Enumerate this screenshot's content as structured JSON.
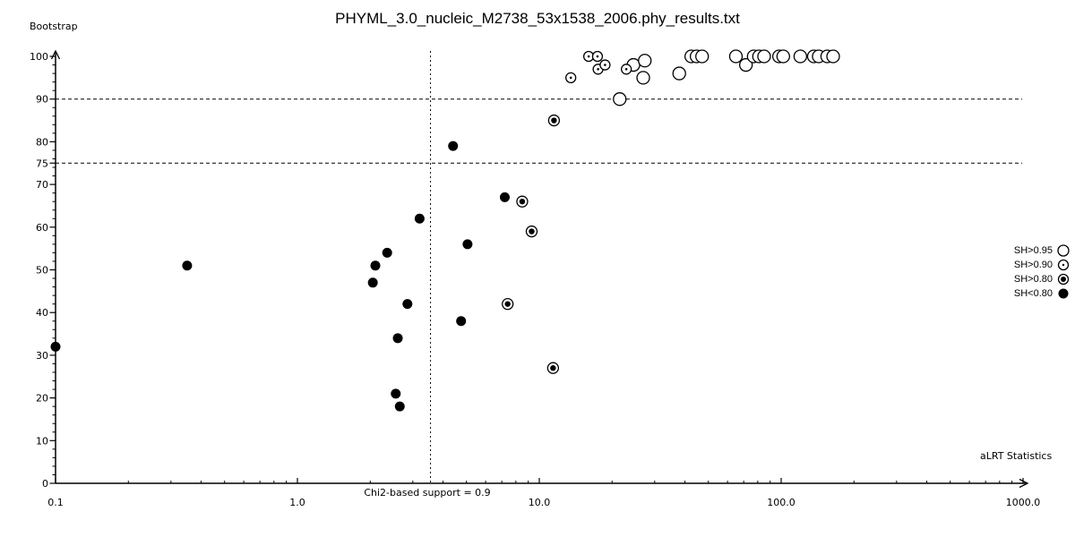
{
  "colors": {
    "background": "#ffffff",
    "foreground": "#000000"
  },
  "chart_data": {
    "type": "scatter",
    "title": "PHYML_3.0_nucleic_M2738_53x1538_2006.phy_results.txt",
    "xlabel": "aLRT Statistics",
    "ylabel": "Bootstrap",
    "x_axis": {
      "scale": "log",
      "min": 0.1,
      "max": 1000,
      "ticks": [
        0.1,
        1,
        10,
        100,
        1000
      ],
      "tick_labels": [
        "0.1",
        "1.0",
        "10.0",
        "100.0",
        "1000.0"
      ]
    },
    "y_axis": {
      "scale": "linear",
      "min": 0,
      "max": 100,
      "ticks": [
        0,
        10,
        20,
        30,
        40,
        50,
        60,
        70,
        75,
        80,
        90,
        100
      ],
      "tick_labels": [
        "0",
        "10",
        "20",
        "30",
        "40",
        "50",
        "60",
        "70",
        "75",
        "80",
        "90",
        "100"
      ],
      "minor_tick_step": 2
    },
    "grid": "off",
    "reference_lines": {
      "horizontal": [
        {
          "y": 90
        },
        {
          "y": 75
        }
      ],
      "vertical": {
        "x": 3.55,
        "label": "Chi2-based support = 0.9"
      }
    },
    "legend": {
      "position": "right",
      "items": [
        {
          "label": "SH>0.95",
          "symbol": "open-circle"
        },
        {
          "label": "SH>0.90",
          "symbol": "dotted-circle"
        },
        {
          "label": "SH>0.80",
          "symbol": "bullseye-circle"
        },
        {
          "label": "SH<0.80",
          "symbol": "filled-circle"
        }
      ]
    },
    "series": [
      {
        "name": "SH>0.95",
        "symbol": "open-circle",
        "points": [
          [
            21.5,
            90
          ],
          [
            24.5,
            98
          ],
          [
            26.9,
            95
          ],
          [
            27.3,
            99
          ],
          [
            37.9,
            96
          ],
          [
            42.5,
            100
          ],
          [
            44.7,
            100
          ],
          [
            47.1,
            100
          ],
          [
            65,
            100
          ],
          [
            71.5,
            98
          ],
          [
            77,
            100
          ],
          [
            81,
            100
          ],
          [
            85,
            100
          ],
          [
            98,
            100
          ],
          [
            102,
            100
          ],
          [
            120,
            100
          ],
          [
            136.5,
            100
          ],
          [
            143,
            100
          ],
          [
            155,
            100
          ],
          [
            164,
            100
          ]
        ]
      },
      {
        "name": "SH>0.90",
        "symbol": "dotted-circle",
        "points": [
          [
            13.5,
            95
          ],
          [
            16,
            100
          ],
          [
            17.4,
            100
          ],
          [
            17.5,
            97
          ],
          [
            18.7,
            98
          ],
          [
            22.9,
            97
          ]
        ]
      },
      {
        "name": "SH>0.80",
        "symbol": "bullseye-circle",
        "points": [
          [
            7.4,
            42
          ],
          [
            8.5,
            66
          ],
          [
            9.3,
            59
          ],
          [
            11.4,
            27
          ],
          [
            11.5,
            85
          ]
        ]
      },
      {
        "name": "SH<0.80",
        "symbol": "filled-circle",
        "points": [
          [
            0.1,
            32
          ],
          [
            0.35,
            51
          ],
          [
            2.05,
            47
          ],
          [
            2.1,
            51
          ],
          [
            2.35,
            54
          ],
          [
            2.55,
            21
          ],
          [
            2.6,
            34
          ],
          [
            2.65,
            18
          ],
          [
            2.85,
            42
          ],
          [
            3.2,
            62
          ],
          [
            4.4,
            79
          ],
          [
            4.75,
            38
          ],
          [
            5.05,
            56
          ],
          [
            7.2,
            67
          ]
        ]
      }
    ]
  }
}
